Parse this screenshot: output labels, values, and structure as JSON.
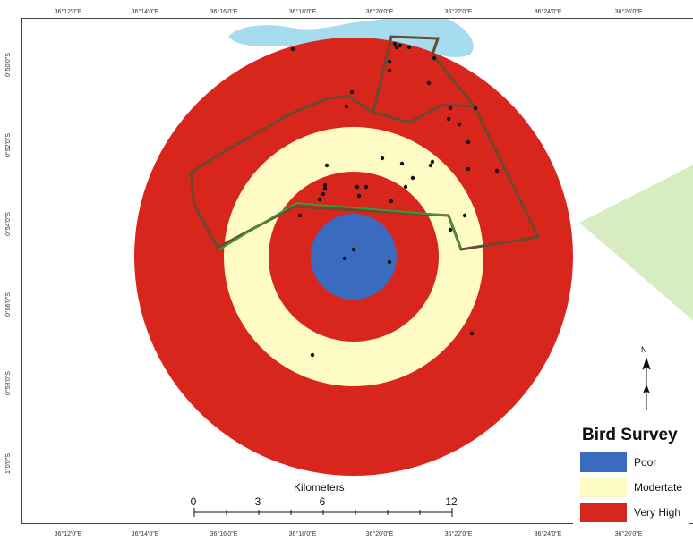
{
  "map": {
    "lon_labels": [
      "36°12'0\"E",
      "36°14'0\"E",
      "36°16'0\"E",
      "36°18'0\"E",
      "36°20'0\"E",
      "36°22'0\"E",
      "36°24'0\"E",
      "36°26'0\"E"
    ],
    "lat_labels": [
      "0°50'0\"S",
      "0°52'0\"S",
      "0°54'0\"S",
      "0°56'0\"S",
      "0°58'0\"S",
      "1°0'0\"S"
    ],
    "colors": {
      "very_high": "#d9261c",
      "moderate": "#fefcc4",
      "poor": "#3b6bbe",
      "water": "#a6dcef",
      "protected_area": "#d7ecc0",
      "boundary_brown": "#6a4a2e",
      "boundary_green": "#3a9a3a",
      "survey_point": "#111111"
    }
  },
  "legend": {
    "title": "Bird Survey",
    "items": [
      {
        "label": "Poor",
        "color": "#3b6bbe"
      },
      {
        "label": "Modertate",
        "color": "#fefcc4"
      },
      {
        "label": "Very High",
        "color": "#d9261c"
      }
    ]
  },
  "scale": {
    "title": "Kilometers",
    "ticks": [
      "0",
      "3",
      "6",
      "12"
    ]
  },
  "north_arrow": {
    "letter": "N",
    "icon": "north-arrow-icon"
  }
}
